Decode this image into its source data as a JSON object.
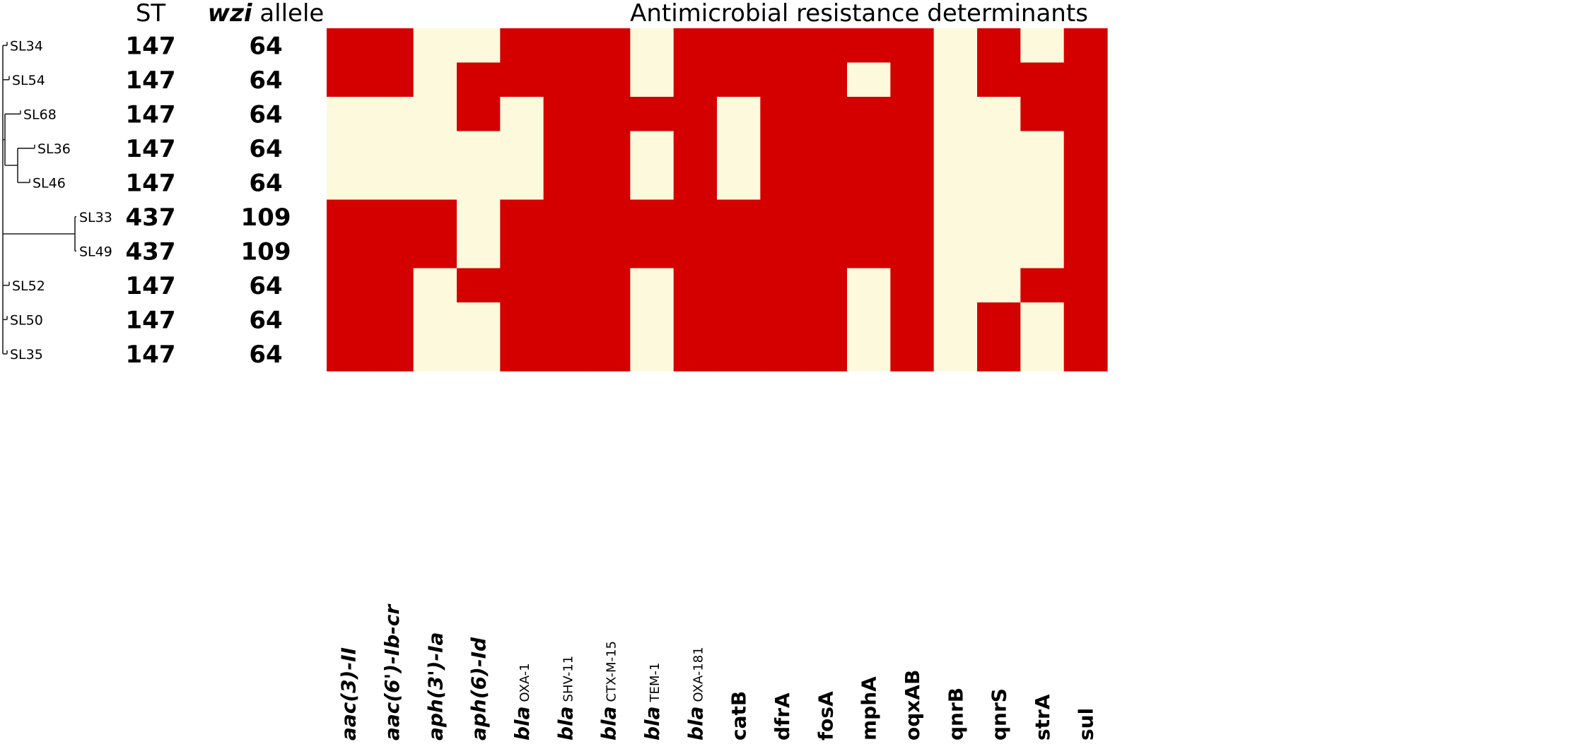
{
  "chart_data": {
    "type": "heatmap",
    "title": "Antimicrobial resistance determinants",
    "table_headers": {
      "st": "ST",
      "wzi_italic": "wzi",
      "wzi_rest": "allele"
    },
    "rows": [
      {
        "isolate": "SL34",
        "st": "147",
        "wzi": "64",
        "values": [
          1,
          1,
          0,
          0,
          1,
          1,
          1,
          0,
          1,
          1,
          1,
          1,
          1,
          1,
          0,
          1,
          0,
          1
        ]
      },
      {
        "isolate": "SL54",
        "st": "147",
        "wzi": "64",
        "values": [
          1,
          1,
          0,
          1,
          1,
          1,
          1,
          0,
          1,
          1,
          1,
          1,
          0,
          1,
          0,
          1,
          1,
          1
        ]
      },
      {
        "isolate": "SL68",
        "st": "147",
        "wzi": "64",
        "values": [
          0,
          0,
          0,
          1,
          0,
          1,
          1,
          1,
          1,
          0,
          1,
          1,
          1,
          1,
          0,
          0,
          1,
          1
        ]
      },
      {
        "isolate": "SL36",
        "st": "147",
        "wzi": "64",
        "values": [
          0,
          0,
          0,
          0,
          0,
          1,
          1,
          0,
          1,
          0,
          1,
          1,
          1,
          1,
          0,
          0,
          0,
          1
        ]
      },
      {
        "isolate": "SL46",
        "st": "147",
        "wzi": "64",
        "values": [
          0,
          0,
          0,
          0,
          0,
          1,
          1,
          0,
          1,
          0,
          1,
          1,
          1,
          1,
          0,
          0,
          0,
          1
        ]
      },
      {
        "isolate": "SL33",
        "st": "437",
        "wzi": "109",
        "values": [
          1,
          1,
          1,
          0,
          1,
          1,
          1,
          1,
          1,
          1,
          1,
          1,
          1,
          1,
          0,
          0,
          0,
          1
        ]
      },
      {
        "isolate": "SL49",
        "st": "437",
        "wzi": "109",
        "values": [
          1,
          1,
          1,
          0,
          1,
          1,
          1,
          1,
          1,
          1,
          1,
          1,
          1,
          1,
          0,
          0,
          0,
          1
        ]
      },
      {
        "isolate": "SL52",
        "st": "147",
        "wzi": "64",
        "values": [
          1,
          1,
          0,
          1,
          1,
          1,
          1,
          0,
          1,
          1,
          1,
          1,
          0,
          1,
          0,
          0,
          1,
          1
        ]
      },
      {
        "isolate": "SL50",
        "st": "147",
        "wzi": "64",
        "values": [
          1,
          1,
          0,
          0,
          1,
          1,
          1,
          0,
          1,
          1,
          1,
          1,
          0,
          1,
          0,
          1,
          0,
          1
        ]
      },
      {
        "isolate": "SL35",
        "st": "147",
        "wzi": "64",
        "values": [
          1,
          1,
          0,
          0,
          1,
          1,
          1,
          0,
          1,
          1,
          1,
          1,
          0,
          1,
          0,
          1,
          0,
          1
        ]
      }
    ],
    "columns": [
      {
        "main": "aac(3)-II",
        "sub": "",
        "italic": true
      },
      {
        "main": "aac(6')-Ib-cr",
        "sub": "",
        "italic": true
      },
      {
        "main": "aph(3')-Ia",
        "sub": "",
        "italic": true
      },
      {
        "main": "aph(6)-Id",
        "sub": "",
        "italic": true
      },
      {
        "main": "bla",
        "sub": "OXA-1",
        "italic": true
      },
      {
        "main": "bla",
        "sub": "SHV-11",
        "italic": true
      },
      {
        "main": "bla",
        "sub": "CTX-M-15",
        "italic": true
      },
      {
        "main": "bla",
        "sub": "TEM-1",
        "italic": true
      },
      {
        "main": "bla",
        "sub": "OXA-181",
        "italic": true
      },
      {
        "main": "catB",
        "sub": "",
        "italic": false
      },
      {
        "main": "dfrA",
        "sub": "",
        "italic": false
      },
      {
        "main": "fosA",
        "sub": "",
        "italic": false
      },
      {
        "main": "mphA",
        "sub": "",
        "italic": false
      },
      {
        "main": "oqxAB",
        "sub": "",
        "italic": false
      },
      {
        "main": "qnrB",
        "sub": "",
        "italic": false
      },
      {
        "main": "qnrS",
        "sub": "",
        "italic": false
      },
      {
        "main": "strA",
        "sub": "",
        "italic": false
      },
      {
        "main": "sul",
        "sub": "",
        "italic": false
      }
    ],
    "colors": {
      "present": "#d40000",
      "absent": "#fdf9dc"
    },
    "legend": "none",
    "grid": false
  }
}
